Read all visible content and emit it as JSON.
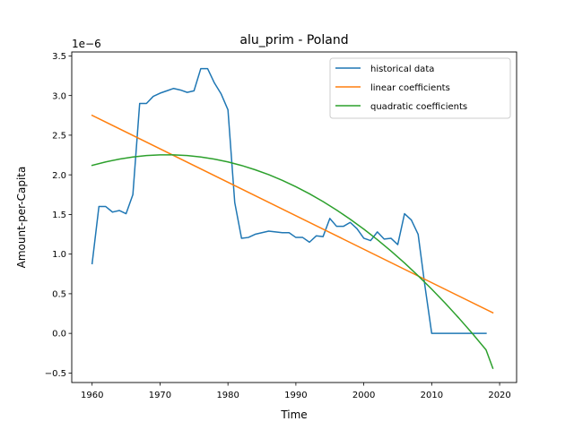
{
  "chart_data": {
    "type": "line",
    "title": "alu_prim - Poland",
    "xlabel": "Time",
    "ylabel": "Amount-per-Capita",
    "y_offset_label": "1e−6",
    "xlim": [
      1957,
      2022.5
    ],
    "ylim": [
      -0.62,
      3.55
    ],
    "x_ticks": [
      1960,
      1970,
      1980,
      1990,
      2000,
      2010,
      2020
    ],
    "y_ticks": [
      -0.5,
      0.0,
      0.5,
      1.0,
      1.5,
      2.0,
      2.5,
      3.0,
      3.5
    ],
    "y_tick_labels": [
      "−0.5",
      "0.0",
      "0.5",
      "1.0",
      "1.5",
      "2.0",
      "2.5",
      "3.0",
      "3.5"
    ],
    "grid": false,
    "legend_position": "top-right",
    "series": [
      {
        "name": "historical data",
        "color": "#1f77b4",
        "x": [
          1960,
          1961,
          1962,
          1963,
          1964,
          1965,
          1966,
          1967,
          1968,
          1969,
          1970,
          1971,
          1972,
          1973,
          1974,
          1975,
          1976,
          1977,
          1978,
          1979,
          1980,
          1981,
          1982,
          1983,
          1984,
          1985,
          1986,
          1987,
          1988,
          1989,
          1990,
          1991,
          1992,
          1993,
          1994,
          1995,
          1996,
          1997,
          1998,
          1999,
          2000,
          2001,
          2002,
          2003,
          2004,
          2005,
          2006,
          2007,
          2008,
          2009,
          2010,
          2011,
          2012,
          2013,
          2014,
          2015,
          2016,
          2017,
          2018
        ],
        "y": [
          0.88,
          1.6,
          1.6,
          1.53,
          1.55,
          1.51,
          1.75,
          2.9,
          2.9,
          2.99,
          3.03,
          3.06,
          3.09,
          3.07,
          3.04,
          3.06,
          3.34,
          3.34,
          3.16,
          3.02,
          2.82,
          1.65,
          1.2,
          1.21,
          1.25,
          1.27,
          1.29,
          1.28,
          1.27,
          1.27,
          1.21,
          1.21,
          1.15,
          1.23,
          1.22,
          1.45,
          1.35,
          1.35,
          1.4,
          1.32,
          1.2,
          1.17,
          1.28,
          1.19,
          1.2,
          1.12,
          1.51,
          1.43,
          1.25,
          0.6,
          0.0,
          0.0,
          0.0,
          0.0,
          0.0,
          0.0,
          0.0,
          0.0,
          0.0
        ]
      },
      {
        "name": "linear coefficients",
        "color": "#ff7f0e",
        "x": [
          1960,
          2019
        ],
        "y": [
          2.75,
          0.26
        ]
      },
      {
        "name": "quadratic coefficients",
        "color": "#2ca02c",
        "x": [
          1960,
          1962,
          1964,
          1966,
          1968,
          1970,
          1972,
          1974,
          1976,
          1978,
          1980,
          1982,
          1984,
          1986,
          1988,
          1990,
          1992,
          1994,
          1996,
          1998,
          2000,
          2002,
          2004,
          2006,
          2008,
          2010,
          2012,
          2014,
          2016,
          2018,
          2019
        ],
        "y": [
          2.12,
          2.163,
          2.198,
          2.225,
          2.244,
          2.252,
          2.252,
          2.244,
          2.225,
          2.198,
          2.163,
          2.118,
          2.064,
          2.002,
          1.93,
          1.85,
          1.761,
          1.663,
          1.556,
          1.44,
          1.315,
          1.182,
          1.039,
          0.888,
          0.727,
          0.558,
          0.38,
          0.193,
          -0.003,
          -0.208,
          -0.44
        ]
      }
    ]
  }
}
